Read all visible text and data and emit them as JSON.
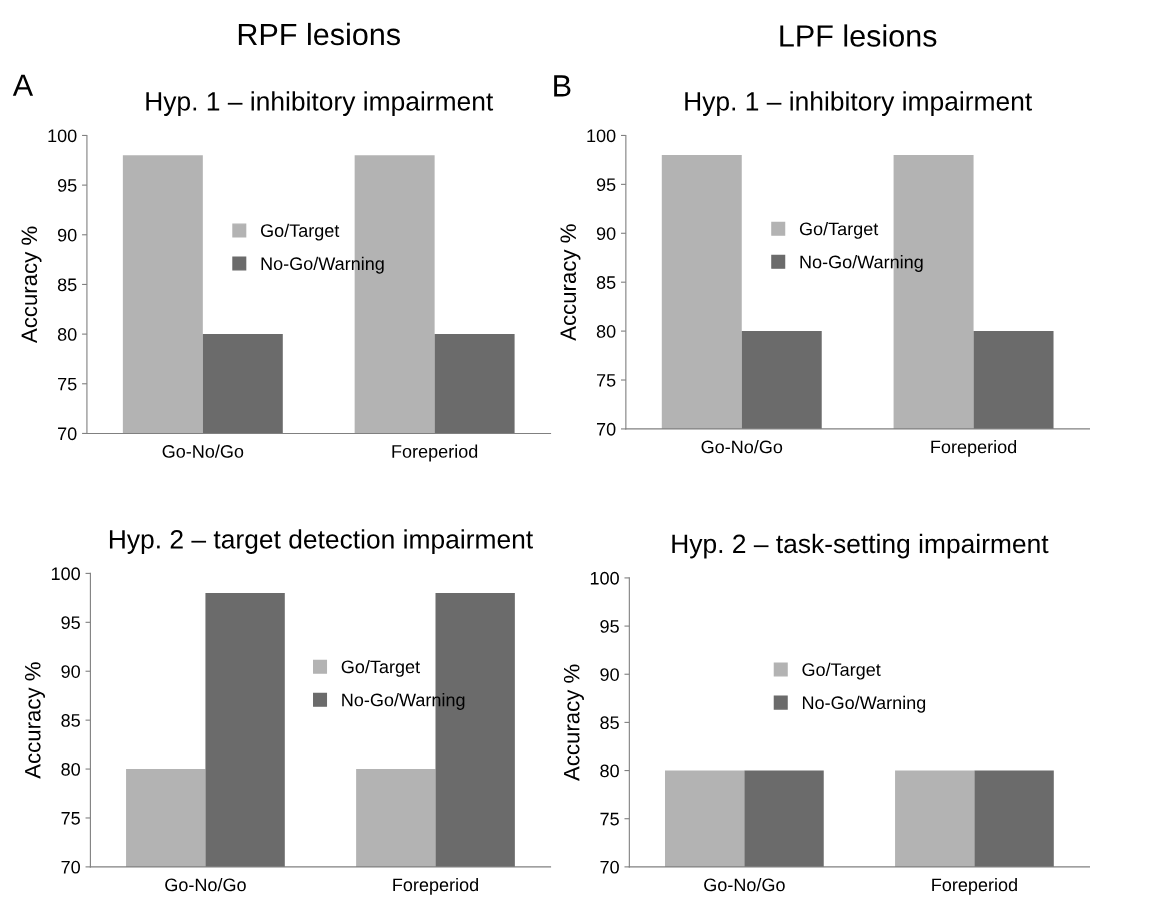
{
  "chart_data": [
    {
      "type": "bar",
      "title": "Hyp. 1 – inhibitory impairment",
      "annotations": [
        "RPF lesions",
        "A"
      ],
      "ylabel": "Accuracy %",
      "categories": [
        "Go-No/Go",
        "Foreperiod"
      ],
      "series": [
        {
          "name": "Go/Target",
          "color": "#b3b3b3",
          "values": [
            98,
            98
          ]
        },
        {
          "name": "No-Go/Warning",
          "color": "#6b6b6b",
          "values": [
            80,
            80
          ]
        }
      ],
      "ylim": [
        70,
        100
      ],
      "yticks": [
        70,
        75,
        80,
        85,
        90,
        95,
        100
      ],
      "grid": false,
      "legend": "center"
    },
    {
      "type": "bar",
      "title": "Hyp. 1 – inhibitory impairment",
      "annotations": [
        "LPF lesions",
        "B"
      ],
      "ylabel": "Accuracy %",
      "categories": [
        "Go-No/Go",
        "Foreperiod"
      ],
      "series": [
        {
          "name": "Go/Target",
          "color": "#b3b3b3",
          "values": [
            98,
            98
          ]
        },
        {
          "name": "No-Go/Warning",
          "color": "#6b6b6b",
          "values": [
            80,
            80
          ]
        }
      ],
      "ylim": [
        70,
        100
      ],
      "yticks": [
        70,
        75,
        80,
        85,
        90,
        95,
        100
      ],
      "grid": false,
      "legend": "center"
    },
    {
      "type": "bar",
      "title": "Hyp. 2 – target detection impairment",
      "ylabel": "Accuracy %",
      "categories": [
        "Go-No/Go",
        "Foreperiod"
      ],
      "series": [
        {
          "name": "Go/Target",
          "color": "#b3b3b3",
          "values": [
            80,
            80
          ]
        },
        {
          "name": "No-Go/Warning",
          "color": "#6b6b6b",
          "values": [
            98,
            98
          ]
        }
      ],
      "ylim": [
        70,
        100
      ],
      "yticks": [
        70,
        75,
        80,
        85,
        90,
        95,
        100
      ],
      "grid": false,
      "legend": "center"
    },
    {
      "type": "bar",
      "title": "Hyp. 2 – task-setting impairment",
      "ylabel": "Accuracy %",
      "categories": [
        "Go-No/Go",
        "Foreperiod"
      ],
      "series": [
        {
          "name": "Go/Target",
          "color": "#b3b3b3",
          "values": [
            80,
            80
          ]
        },
        {
          "name": "No-Go/Warning",
          "color": "#6b6b6b",
          "values": [
            80,
            80
          ]
        }
      ],
      "ylim": [
        70,
        100
      ],
      "yticks": [
        70,
        75,
        80,
        85,
        90,
        95,
        100
      ],
      "grid": false,
      "legend": "center"
    }
  ]
}
